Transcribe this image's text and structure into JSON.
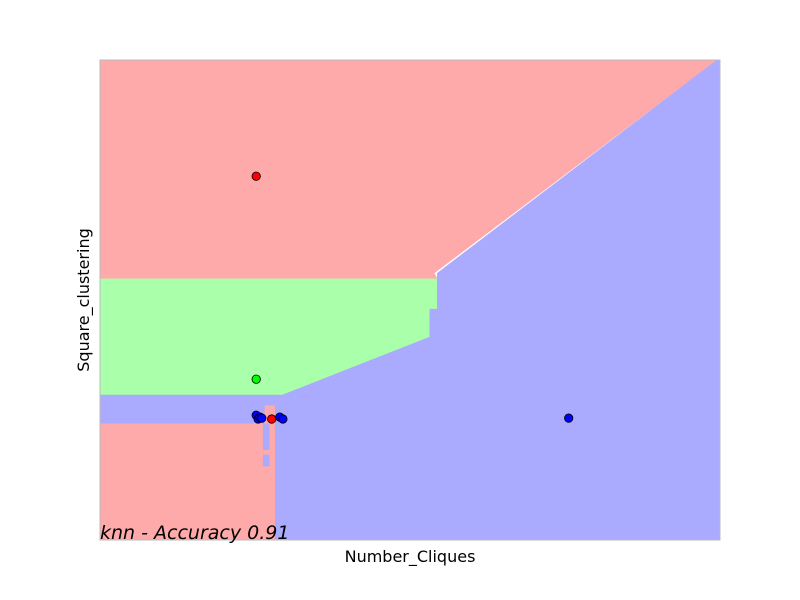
{
  "chart_data": {
    "type": "scatter",
    "title": "",
    "xlabel": "Number_Cliques",
    "ylabel": "Square_clustering",
    "annotation": "knn - Accuracy 0.91",
    "xlim": [
      0,
      100
    ],
    "ylim": [
      0,
      100
    ],
    "xticks": [],
    "yticks": [],
    "grid": false,
    "legend": "none",
    "class_colors": {
      "region_red": "#ffaaaa",
      "region_green": "#aaffaa",
      "region_blue": "#aaaaff",
      "point_red": "#ff0000",
      "point_green": "#00ff00",
      "point_blue": "#0000ff"
    },
    "decision_regions": [
      {
        "class": "red",
        "polygon": [
          [
            0,
            100
          ],
          [
            99.5,
            100
          ],
          [
            53.9,
            55.6
          ],
          [
            54.4,
            54.4
          ],
          [
            0,
            54.4
          ]
        ]
      },
      {
        "class": "green",
        "polygon": [
          [
            0,
            54.4
          ],
          [
            54.4,
            54.4
          ],
          [
            54.4,
            48.1
          ],
          [
            53.2,
            48.1
          ],
          [
            53.2,
            42.3
          ],
          [
            29.4,
            30.2
          ],
          [
            29.4,
            30.2
          ],
          [
            0,
            30.2
          ]
        ]
      },
      {
        "class": "blue",
        "polygon": [
          [
            0,
            30.2
          ],
          [
            29.4,
            30.2
          ],
          [
            53.2,
            42.3
          ],
          [
            53.2,
            48.1
          ],
          [
            54.4,
            48.1
          ],
          [
            54.4,
            55.6
          ],
          [
            99.5,
            100
          ],
          [
            100,
            100
          ],
          [
            100,
            0
          ],
          [
            28.2,
            0
          ],
          [
            28.2,
            15.4
          ],
          [
            26.6,
            15.4
          ],
          [
            26.6,
            24.2
          ],
          [
            0,
            24.2
          ]
        ]
      },
      {
        "class": "red",
        "polygon": [
          [
            0,
            24.2
          ],
          [
            26.6,
            24.2
          ],
          [
            26.6,
            28.0
          ],
          [
            28.2,
            28.0
          ],
          [
            28.2,
            0
          ],
          [
            0,
            0
          ]
        ]
      },
      {
        "class": "blue",
        "polygon": [
          [
            26.3,
            24.2
          ],
          [
            27.3,
            24.2
          ],
          [
            27.3,
            18.8
          ],
          [
            26.3,
            18.8
          ]
        ]
      },
      {
        "class": "blue",
        "polygon": [
          [
            26.3,
            17.7
          ],
          [
            27.3,
            17.7
          ],
          [
            27.3,
            15.4
          ],
          [
            26.3,
            15.4
          ]
        ]
      }
    ],
    "points": [
      {
        "x": 25.2,
        "y": 75.8,
        "class": "red"
      },
      {
        "x": 25.2,
        "y": 33.5,
        "class": "green"
      },
      {
        "x": 25.2,
        "y": 26.0,
        "class": "blue"
      },
      {
        "x": 25.5,
        "y": 25.2,
        "class": "blue"
      },
      {
        "x": 25.8,
        "y": 25.6,
        "class": "blue"
      },
      {
        "x": 26.1,
        "y": 25.4,
        "class": "blue"
      },
      {
        "x": 27.7,
        "y": 25.2,
        "class": "red"
      },
      {
        "x": 29.0,
        "y": 25.6,
        "class": "blue"
      },
      {
        "x": 29.5,
        "y": 25.2,
        "class": "blue"
      },
      {
        "x": 75.6,
        "y": 25.4,
        "class": "blue"
      }
    ]
  }
}
